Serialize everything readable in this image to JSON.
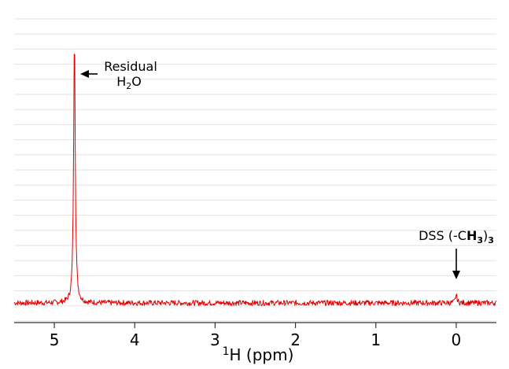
{
  "chart_data": {
    "type": "line",
    "title": "",
    "xlabel": {
      "superscript": "1",
      "text": "H (ppm)"
    },
    "ylabel": "",
    "x_axis_reversed": true,
    "xlim": [
      5.5,
      -0.5
    ],
    "x_ticks": [
      5,
      4,
      3,
      2,
      1,
      0
    ],
    "x_tick_labels": [
      "5",
      "4",
      "3",
      "2",
      "1",
      "0"
    ],
    "y_ticks_shown": false,
    "grid": "horizontal",
    "line_color": "#e00000",
    "series": [
      {
        "peaks": [
          {
            "x": 4.75,
            "relative_height": 1.0
          },
          {
            "x": 0.0,
            "relative_height": 0.03
          }
        ],
        "baseline": 0.0,
        "noise_level": 0.01
      }
    ],
    "annotations": [
      {
        "lines": [
          "Residual",
          "H",
          "2",
          "O"
        ],
        "x": 4.75,
        "arrow": "left"
      },
      {
        "parts": [
          "DSS (-C",
          "H",
          "3",
          ")",
          "3"
        ],
        "x": 0.0,
        "arrow": "down"
      }
    ]
  }
}
